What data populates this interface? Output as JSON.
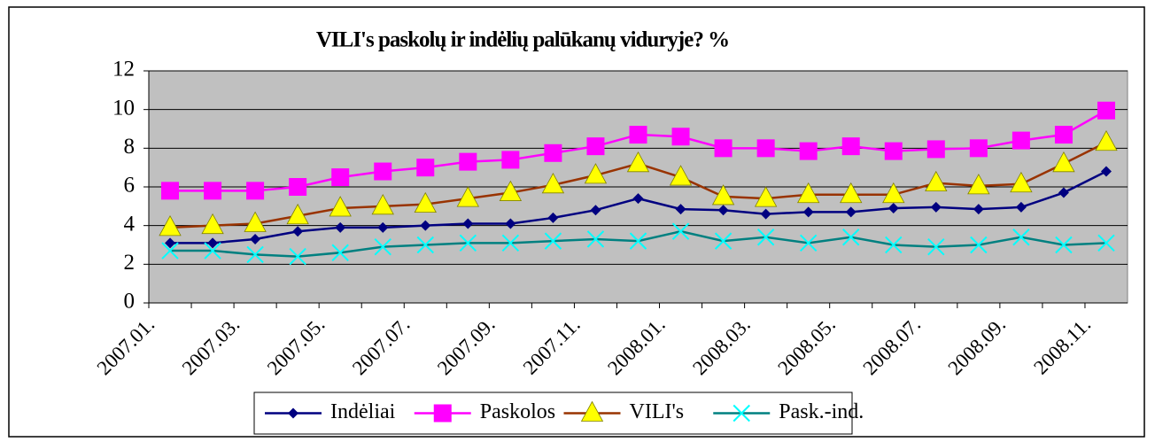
{
  "chart_data": {
    "type": "line",
    "title": "VILI's paskolų ir indėlių palūkanų viduryje? %",
    "categories": [
      "2007.01.",
      null,
      "2007.03.",
      null,
      "2007.05.",
      null,
      "2007.07.",
      null,
      "2007.09.",
      null,
      "2007.11.",
      null,
      "2008.01.",
      null,
      "2008.03.",
      null,
      "2008.05.",
      null,
      "2008.07.",
      null,
      "2008.09.",
      null,
      "2008.11."
    ],
    "series": [
      {
        "name": "Indėliai",
        "color": "#000080",
        "marker": "diamond",
        "marker_color": "#000080",
        "values": [
          3.1,
          3.1,
          3.3,
          3.7,
          3.9,
          3.9,
          4.0,
          4.1,
          4.1,
          4.4,
          4.8,
          5.4,
          4.85,
          4.8,
          4.6,
          4.7,
          4.7,
          4.9,
          4.95,
          4.85,
          4.95,
          5.7,
          6.8
        ]
      },
      {
        "name": "Paskolos",
        "color": "#ff00ff",
        "marker": "square",
        "marker_color": "#ff00ff",
        "values": [
          5.8,
          5.8,
          5.8,
          6.0,
          6.5,
          6.8,
          7.0,
          7.3,
          7.4,
          7.75,
          8.1,
          8.7,
          8.6,
          8.0,
          8.0,
          7.85,
          8.1,
          7.85,
          7.95,
          8.0,
          8.4,
          8.7,
          9.95
        ]
      },
      {
        "name": "VILI's",
        "color": "#993300",
        "marker": "triangle",
        "marker_color": "#ffff00",
        "values": [
          3.9,
          4.0,
          4.1,
          4.5,
          4.9,
          5.0,
          5.1,
          5.4,
          5.7,
          6.1,
          6.6,
          7.2,
          6.5,
          5.5,
          5.4,
          5.6,
          5.6,
          5.6,
          6.2,
          6.05,
          6.15,
          7.2,
          8.3
        ]
      },
      {
        "name": "Pask.-ind.",
        "color": "#008080",
        "marker": "x",
        "marker_color": "#00ffff",
        "values": [
          2.7,
          2.7,
          2.5,
          2.4,
          2.6,
          2.9,
          3.0,
          3.1,
          3.1,
          3.2,
          3.3,
          3.2,
          3.7,
          3.2,
          3.4,
          3.1,
          3.4,
          3.0,
          2.9,
          3.0,
          3.4,
          3.0,
          3.1
        ]
      }
    ],
    "ylim": [
      0,
      12
    ],
    "yticks": [
      0,
      2,
      4,
      6,
      8,
      10,
      12
    ],
    "grid": true,
    "plot_color": "#c0c0c0",
    "legend": "bottom"
  }
}
